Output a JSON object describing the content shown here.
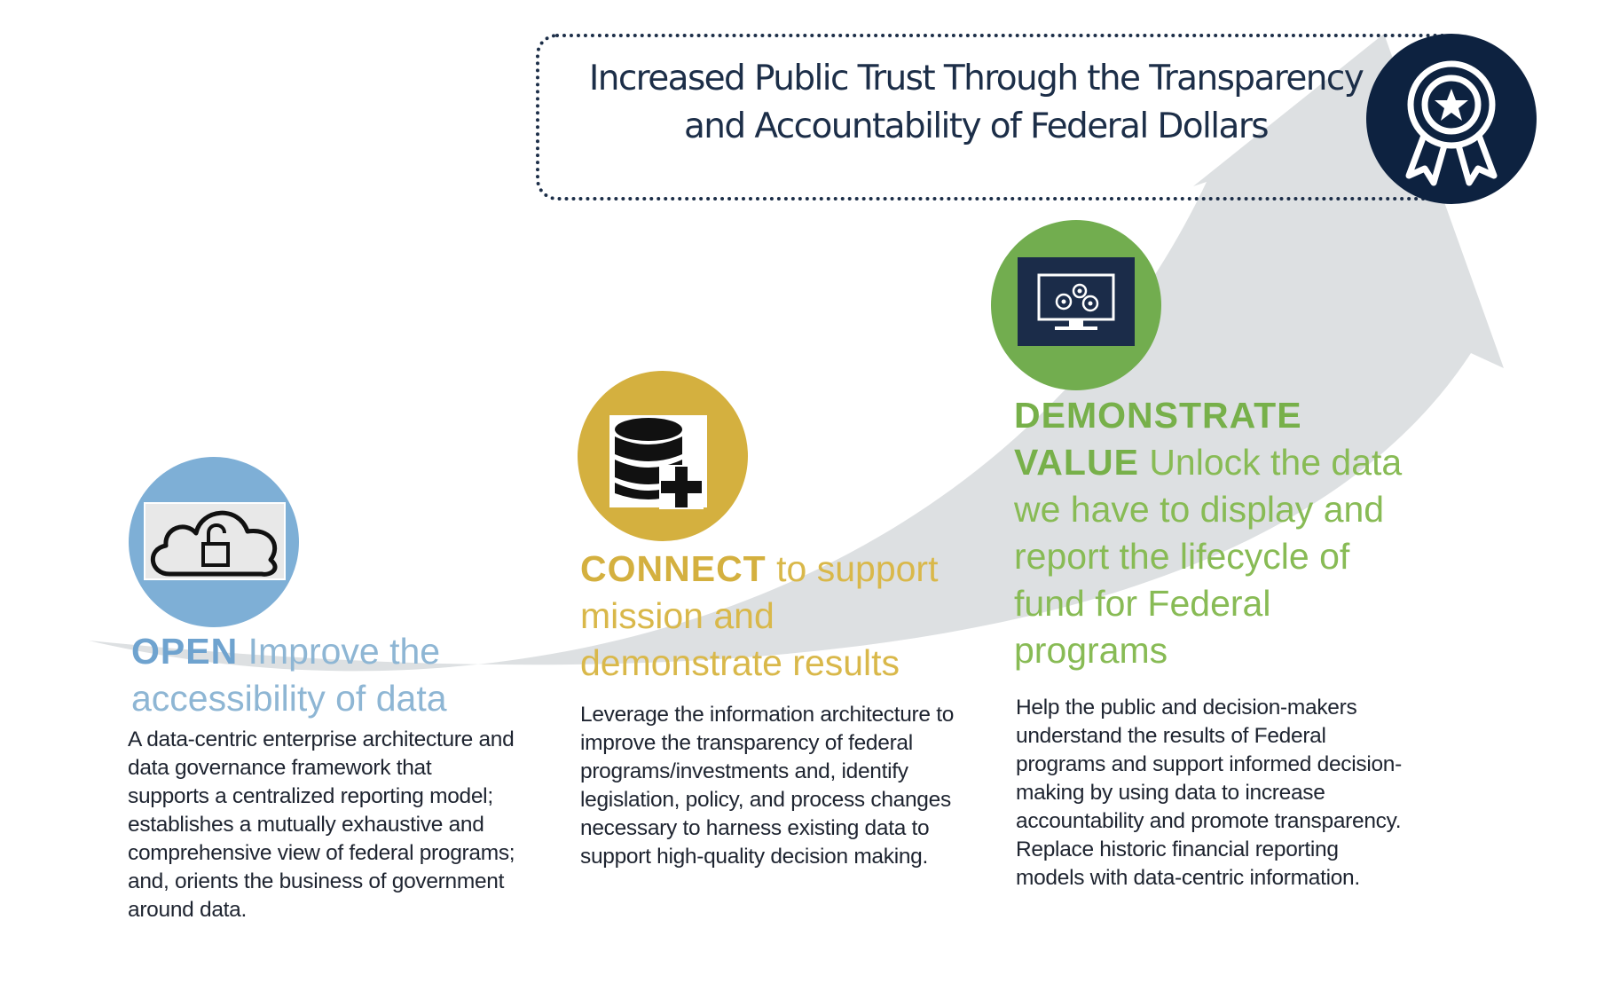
{
  "goal": {
    "line1": "Increased Public Trust Through the Transparency",
    "line2": "and Accountability of Federal Dollars",
    "icon": "award-ribbon-icon",
    "icon_color": "#0d2240"
  },
  "colors": {
    "arrow": "#dde0e2",
    "open": "#6fa3cf",
    "connect": "#d4b03f",
    "demonstrate": "#77b04a",
    "body_text": "#1e2430",
    "navy": "#1c2e48"
  },
  "steps": [
    {
      "id": "open",
      "icon": "unlocked-cloud-icon",
      "keyword": "OPEN",
      "title_lines": [
        "Improve the",
        "accessibility of data"
      ],
      "body_lines": [
        "A data-centric enterprise architecture and",
        "data governance framework that",
        "supports a centralized reporting model;",
        "establishes a mutually  exhaustive and",
        "comprehensive view of federal programs;",
        "and, orients the business of government",
        "around data."
      ]
    },
    {
      "id": "connect",
      "icon": "database-add-icon",
      "keyword": "CONNECT",
      "title_lines": [
        "to support",
        "mission and",
        "demonstrate results"
      ],
      "body_lines": [
        "Leverage the information architecture to",
        "improve the transparency of federal",
        "programs/investments and,  identify",
        "legislation, policy, and process changes",
        "necessary to harness existing data to",
        "support high-quality  decision making."
      ]
    },
    {
      "id": "demonstrate",
      "icon": "monitor-gears-icon",
      "keyword_lines": [
        "DEMONSTRATE",
        "VALUE"
      ],
      "title_lines": [
        "Unlock the data",
        "we have to display and",
        "report the lifecycle of",
        "fund for Federal",
        "programs"
      ],
      "body_lines": [
        "Help the public and decision-makers",
        "understand the results of Federal",
        "programs and support informed decision-",
        "making by using data to increase",
        "accountability and promote transparency.",
        "Replace historic financial reporting",
        "models with data-centric information."
      ]
    }
  ]
}
